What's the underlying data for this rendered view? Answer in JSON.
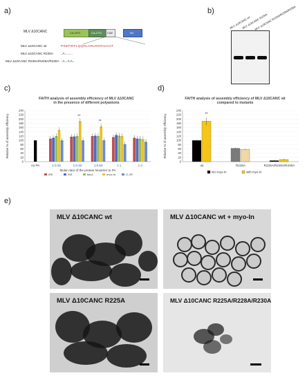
{
  "panels": {
    "a": {
      "label": "a)",
      "title": "MLV Δ10CANC",
      "domains": [
        "CA-NTD",
        "CA-CTD",
        "CAE",
        "NC"
      ],
      "rows": [
        "MLV Δ10CANC wt",
        "MLV Δ10CANC R225A",
        "MLV Δ10CANC R225A/R228A/R230A"
      ],
      "seq_wt": "PSEPIRFLQQGLHRLRKRAHAAT",
      "seq_r225a": "..A.........",
      "seq_triple": "..A...A.A..."
    },
    "b": {
      "label": "b)",
      "lanes": [
        "MLV Δ10CANC wt",
        "MLV Δ10CANC R225A",
        "MLV Δ10CANC R225A/R228A/R230A"
      ]
    },
    "c": {
      "label": "c)",
      "title_line1": "FAITH analysis of assembly efficiency of MLV Δ10CANC",
      "title_line2": "in the presence of different polyanions",
      "ylabel": "Relative % of assembly efficiency",
      "xlabel": "Molar ratio of the protein hexamer to PA",
      "yticks": [
        "0",
        "20",
        "40",
        "60",
        "80",
        "100",
        "120",
        "140",
        "160",
        "180",
        "200",
        "220",
        "240"
      ],
      "groups": [
        "no PA",
        "1:0.25",
        "1:0.33",
        "1:0.50",
        "1:1",
        "1:2"
      ],
      "legend": [
        "IP6",
        "IS6",
        "MeA",
        "myo-In",
        "G-2P"
      ],
      "stars": [
        "**",
        "**"
      ]
    },
    "d": {
      "label": "d)",
      "title_line1": "FAITH analysis of assembly efficiency of MLV Δ10CANC wt",
      "title_line2": "compared to mutants",
      "ylabel": "Relative % of assembly efficiency",
      "yticks": [
        "0",
        "20",
        "40",
        "60",
        "80",
        "100",
        "120",
        "140",
        "160",
        "180",
        "200",
        "220",
        "240"
      ],
      "groups": [
        "wt",
        "R225A",
        "R225A/R228A/R230A"
      ],
      "legend": [
        "w/o myo-In",
        "with myo-In"
      ],
      "stars": [
        "**"
      ]
    },
    "e": {
      "label": "e)",
      "images": [
        "MLV Δ10CANC wt",
        "MLV Δ10CANC wt + myo-In",
        "MLV Δ10CANC R225A",
        "MLV Δ10CANC R225A/R228A/R230A"
      ]
    }
  },
  "chart_data": [
    {
      "type": "bar",
      "title": "FAITH analysis of assembly efficiency of MLV Δ10CANC in the presence of different polyanions",
      "xlabel": "Molar ratio of the protein hexamer to PA",
      "ylabel": "Relative % of assembly efficiency",
      "ylim": [
        0,
        240
      ],
      "categories": [
        "no PA",
        "1:0.25",
        "1:0.33",
        "1:0.50",
        "1:1",
        "1:2"
      ],
      "series": [
        {
          "name": "IP6",
          "color": "#c0504d",
          "values": [
            100,
            108,
            117,
            120,
            115,
            112
          ]
        },
        {
          "name": "IS6",
          "color": "#4f6bc4",
          "values": [
            null,
            112,
            118,
            122,
            125,
            108
          ]
        },
        {
          "name": "MeA",
          "color": "#9bbb59",
          "values": [
            null,
            120,
            120,
            120,
            122,
            108
          ]
        },
        {
          "name": "myo-In",
          "color": "#e6c22a",
          "values": [
            null,
            148,
            190,
            165,
            120,
            105
          ]
        },
        {
          "name": "G-2P",
          "color": "#6a8ccc",
          "values": [
            null,
            100,
            100,
            100,
            82,
            93
          ]
        }
      ],
      "no_pa_value": 100,
      "no_pa_color": "#000000"
    },
    {
      "type": "bar",
      "title": "FAITH analysis of assembly efficiency of MLV Δ10CANC wt compared to mutants",
      "ylabel": "Relative % of assembly efficiency",
      "ylim": [
        0,
        240
      ],
      "categories": [
        "wt",
        "R225A",
        "R225A/R228A/R230A"
      ],
      "series": [
        {
          "name": "w/o myo-In",
          "color": "#000000",
          "values": [
            100,
            63,
            5
          ]
        },
        {
          "name": "with myo-In",
          "color": "#f5c518",
          "values": [
            190,
            58,
            10
          ]
        }
      ]
    }
  ]
}
